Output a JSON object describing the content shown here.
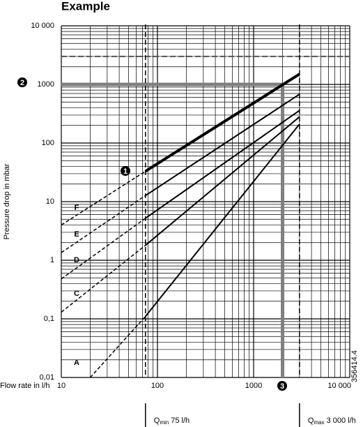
{
  "chart_data": {
    "type": "line",
    "title": "Example",
    "x_label": "Flow rate in l/h",
    "y_label": "Pressure drop in mbar",
    "log_x": true,
    "log_y": true,
    "grid": true,
    "xlim": [
      10,
      10000
    ],
    "ylim": [
      0.01,
      10000
    ],
    "xticks": [
      10,
      100,
      1000,
      {
        "value": 10000,
        "label": "10 000"
      }
    ],
    "yticks": [
      {
        "value": 0.01,
        "label": "0,01"
      },
      {
        "value": 0.1,
        "label": "0,1"
      },
      1,
      10,
      100,
      1000,
      {
        "value": 10000,
        "label": "10 000"
      }
    ],
    "series": [
      {
        "name": "F",
        "color": "#000000",
        "width": 4,
        "x": [
          10,
          75,
          3000
        ],
        "values": [
          4,
          33,
          1500
        ]
      },
      {
        "name": "E",
        "color": "#000000",
        "width": 2,
        "x": [
          10,
          75,
          3000
        ],
        "values": [
          1.35,
          12.7,
          680
        ]
      },
      {
        "name": "D",
        "color": "#000000",
        "width": 2,
        "x": [
          10,
          75,
          3000
        ],
        "values": [
          0.48,
          5.2,
          360
        ]
      },
      {
        "name": "C",
        "color": "#000000",
        "width": 2,
        "x": [
          10,
          75,
          3000
        ],
        "values": [
          0.13,
          1.8,
          280
        ]
      },
      {
        "name": "A",
        "color": "#000000",
        "width": 2,
        "x": [
          20,
          75,
          3000
        ],
        "values": [
          0.01,
          0.11,
          210
        ]
      }
    ],
    "max_pressure_line": 3000,
    "operating_point": {
      "x": 2000,
      "y": 1000,
      "color": "#7f7f7f"
    },
    "qmin": {
      "x": 75,
      "symbol": "Q",
      "subscript": "min",
      "text": " 75 l/h"
    },
    "qmax": {
      "x": 3000,
      "symbol": "Q",
      "subscript": "max",
      "text": " 3 000 l/h"
    },
    "markers": [
      "1",
      "2",
      "3"
    ],
    "figure_code": "356414.4"
  }
}
